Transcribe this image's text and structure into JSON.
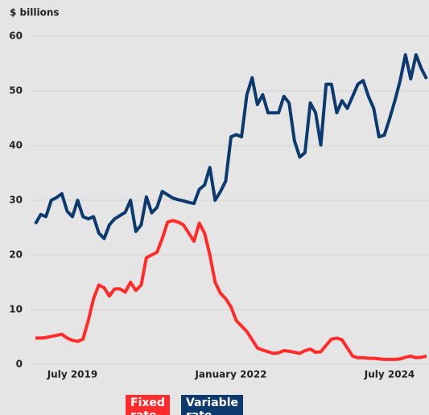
{
  "chart_data": {
    "type": "line",
    "y_label": "$ billions",
    "categories": [
      null,
      null,
      null,
      null,
      null,
      null,
      null,
      "July 2019",
      null,
      null,
      null,
      null,
      null,
      null,
      null,
      null,
      null,
      null,
      null,
      null,
      null,
      null,
      null,
      null,
      null,
      null,
      null,
      null,
      null,
      null,
      null,
      null,
      null,
      null,
      null,
      null,
      null,
      "January 2022",
      null,
      null,
      null,
      null,
      null,
      null,
      null,
      null,
      null,
      null,
      null,
      null,
      null,
      null,
      null,
      null,
      null,
      null,
      null,
      null,
      null,
      null,
      null,
      null,
      null,
      null,
      null,
      null,
      null,
      "July 2024",
      null,
      null,
      null,
      null,
      null,
      null,
      null
    ],
    "series": [
      {
        "name": "Fixed rate",
        "color": "#ff2b2b",
        "values": [
          4.8,
          4.8,
          4.9,
          5.1,
          5.3,
          5.5,
          4.8,
          4.4,
          4.2,
          4.6,
          8,
          12,
          14.5,
          14,
          12.5,
          13.8,
          13.8,
          13.2,
          15,
          13.5,
          14.5,
          19.5,
          20,
          20.5,
          23,
          26,
          26.3,
          26,
          25.5,
          24,
          22.5,
          25.8,
          24,
          20,
          15,
          13,
          12,
          10.5,
          8,
          7,
          6,
          4.5,
          3,
          2.6,
          2.3,
          2,
          2.1,
          2.5,
          2.4,
          2.2,
          2,
          2.5,
          2.8,
          2.2,
          2.3,
          3.5,
          4.6,
          4.8,
          4.5,
          3,
          1.5,
          1.2,
          1.2,
          1.1,
          1.1,
          1,
          0.9,
          0.9,
          0.9,
          1,
          1.3,
          1.5,
          1.2,
          1.3,
          1.5
        ]
      },
      {
        "name": "Variable rate",
        "color": "#0d3a6e",
        "values": [
          25.7,
          27.4,
          27,
          30,
          30.5,
          31.2,
          28,
          27,
          30,
          27,
          26.6,
          27,
          24,
          23,
          25.5,
          26.6,
          27.2,
          27.8,
          30,
          24.3,
          25.5,
          30.6,
          27.7,
          28.7,
          31.6,
          31,
          30.4,
          30.1,
          29.9,
          29.6,
          29.4,
          32,
          32.8,
          36,
          30,
          31.6,
          33.5,
          41.6,
          42,
          41.6,
          49.3,
          52.4,
          47.5,
          49.3,
          46,
          46,
          46,
          49,
          47.8,
          40.9,
          37.9,
          38.7,
          47.8,
          46,
          40.1,
          51.2,
          51.2,
          46,
          48.2,
          46.8,
          49,
          51.2,
          51.9,
          49,
          46.8,
          41.6,
          41.9,
          44.9,
          48.2,
          51.9,
          56.6,
          52.2,
          56.6,
          54.1,
          52.2
        ]
      }
    ],
    "ylim": [
      0,
      60
    ],
    "yticks": [
      0,
      10,
      20,
      30,
      40,
      50,
      60
    ],
    "grid": true
  }
}
